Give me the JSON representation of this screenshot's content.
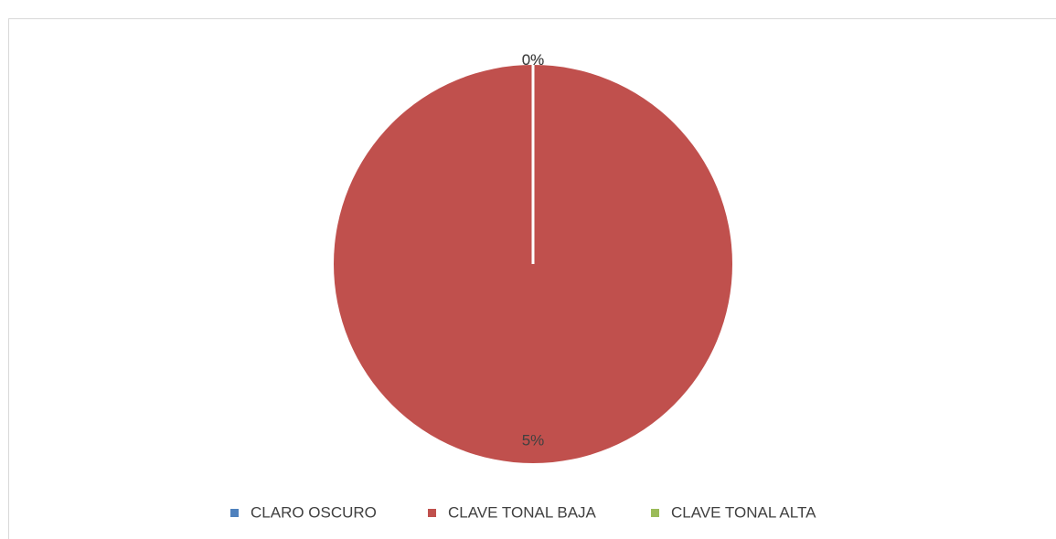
{
  "chart_data": {
    "type": "pie",
    "categories": [
      "CLARO OSCURO",
      "CLAVE TONAL BAJA",
      "CLAVE TONAL ALTA"
    ],
    "values": [
      0,
      5,
      0
    ],
    "value_labels": [
      "0%",
      "5%",
      "0%"
    ],
    "colors": [
      "#4f81bd",
      "#c0504d",
      "#9bbb59"
    ],
    "legend": "bottom"
  }
}
